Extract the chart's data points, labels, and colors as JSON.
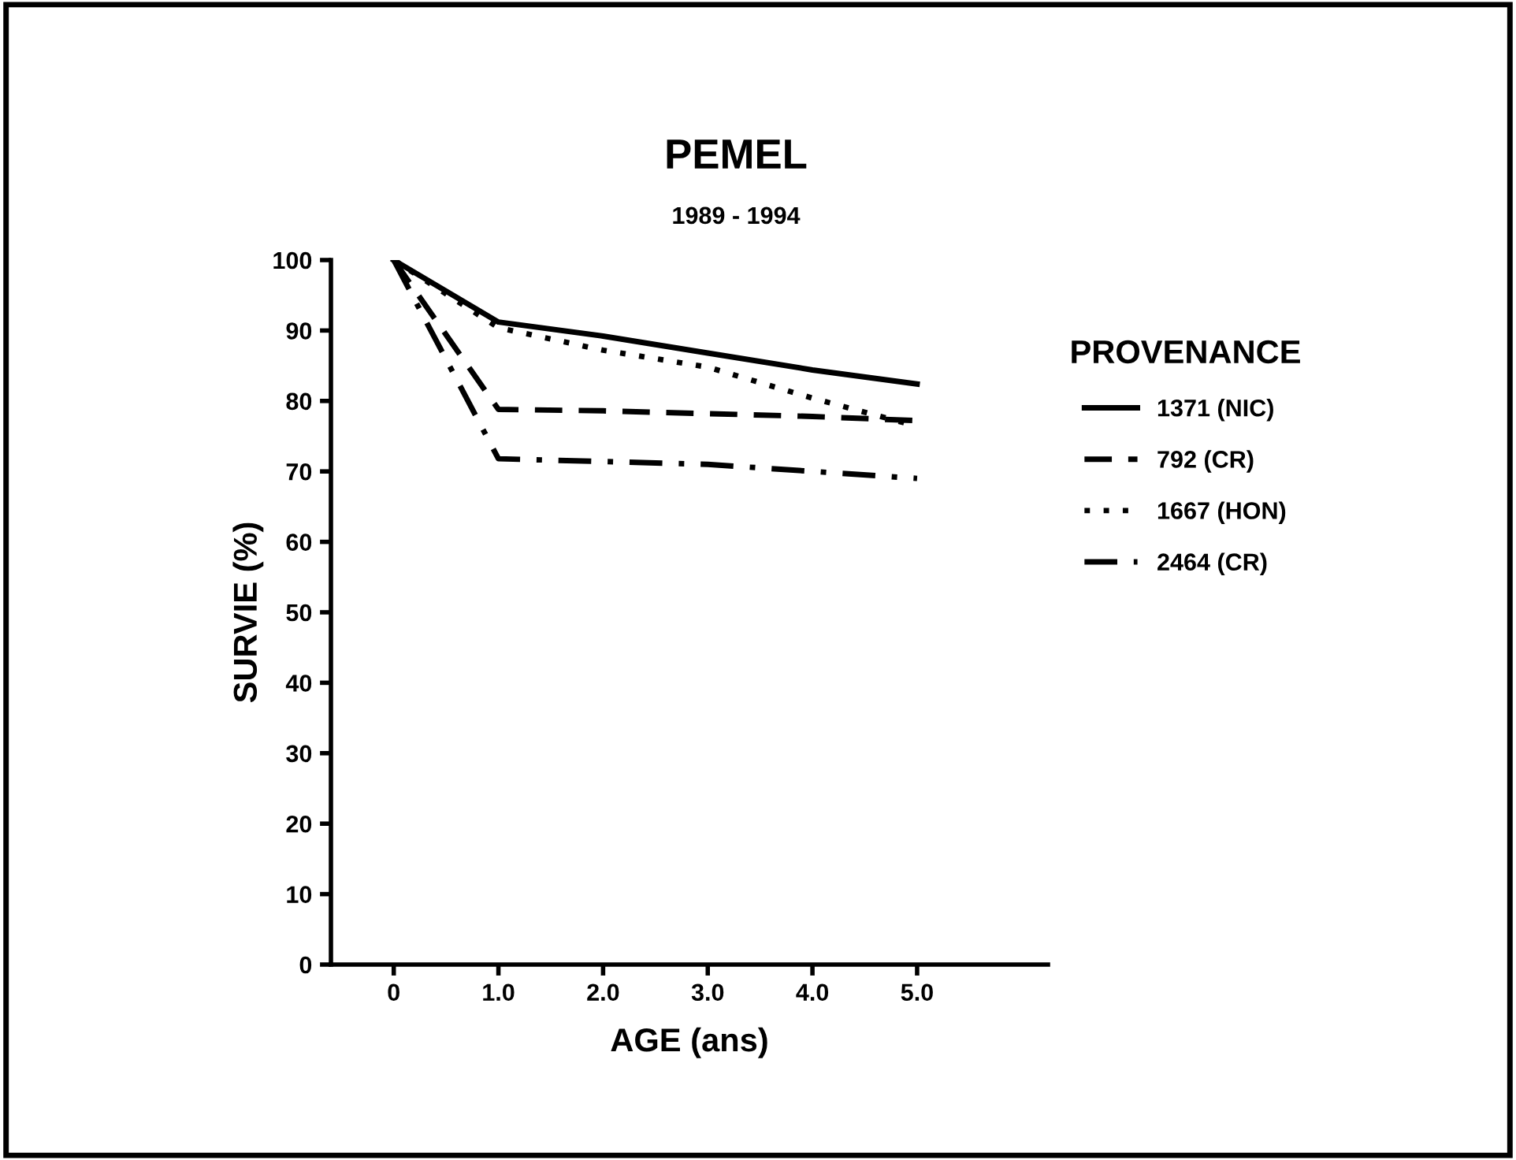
{
  "chart_data": {
    "type": "line",
    "title": "PEMEL",
    "subtitle": "1989 - 1994",
    "xlabel": "AGE (ans)",
    "ylabel": "SURVIE (%)",
    "legend_title": "PROVENANCE",
    "x": [
      0,
      1,
      2,
      3,
      4,
      5
    ],
    "series": [
      {
        "name": "1371 (NIC)",
        "color": "#000000",
        "line_style": "solid",
        "values": [
          100,
          91.2,
          89.2,
          86.8,
          84.4,
          82.4
        ]
      },
      {
        "name": "792 (CR)",
        "color": "#000000",
        "line_style": "dashed",
        "values": [
          100,
          78.8,
          78.6,
          78.2,
          77.8,
          77.2
        ]
      },
      {
        "name": "1667 (HON)",
        "color": "#000000",
        "line_style": "dotted",
        "values": [
          100,
          90.4,
          87.2,
          84.8,
          80.4,
          76.4
        ]
      },
      {
        "name": "2464 (CR)",
        "color": "#000000",
        "line_style": "dashdot",
        "values": [
          100,
          71.8,
          71.4,
          71,
          70,
          69
        ]
      }
    ],
    "xlim": [
      -0.6,
      6.25
    ],
    "xticks": [
      0,
      {
        "value": 1,
        "label": "1.0"
      },
      {
        "value": 2,
        "label": "2.0"
      },
      {
        "value": 3,
        "label": "3.0"
      },
      {
        "value": 4,
        "label": "4.0"
      },
      {
        "value": 5,
        "label": "5.0"
      }
    ],
    "ylim": [
      0,
      100
    ],
    "yticks": [
      0,
      10,
      20,
      30,
      40,
      50,
      60,
      70,
      80,
      90,
      100
    ],
    "grid": false,
    "legend": "right",
    "marker": "none"
  }
}
